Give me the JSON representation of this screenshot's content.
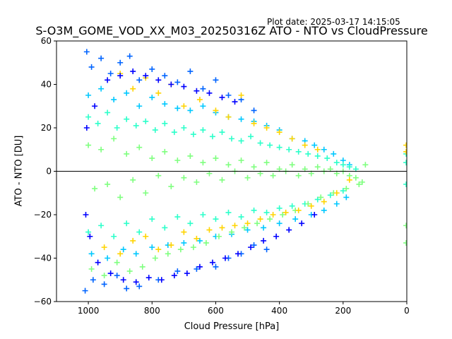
{
  "header": {
    "plot_date": "Plot date: 2025-03-17 14:15:05"
  },
  "chart_data": {
    "type": "scatter",
    "title": "S-O3M_GOME_VOD_XX_M03_20250316Z ATO - NTO vs CloudPressure",
    "xlabel": "Cloud Pressure [hPa]",
    "ylabel": "ATO - NTO [DU]",
    "xlim": [
      1100,
      0
    ],
    "ylim": [
      -60,
      60
    ],
    "x_inverted": true,
    "grid": false,
    "x_ticks": [
      1000,
      800,
      600,
      400,
      200,
      0
    ],
    "y_ticks": [
      -60,
      -40,
      -20,
      0,
      20,
      40,
      60
    ],
    "x_tick_labels": [
      "1000",
      "800",
      "600",
      "400",
      "200",
      "0"
    ],
    "y_tick_labels": [
      "−60",
      "−40",
      "−20",
      "0",
      "20",
      "40",
      "60"
    ],
    "reference_line": {
      "y": 0,
      "color": "#000000"
    },
    "marker": "+",
    "series_colors": [
      "#0000ff",
      "#0064ff",
      "#00c8ff",
      "#2cffca",
      "#7fff7f",
      "#ffd400"
    ],
    "series": [
      {
        "color": "#0064ff",
        "x": [
          1005,
          990,
          960,
          930,
          900,
          870,
          840,
          800,
          760,
          720,
          680,
          640,
          600,
          560,
          520,
          480,
          1010,
          985,
          950,
          910,
          880,
          840,
          780,
          720,
          660,
          600,
          560,
          520,
          480,
          440
        ],
        "y": [
          55,
          48,
          52,
          45,
          50,
          53,
          42,
          47,
          44,
          41,
          46,
          38,
          42,
          35,
          33,
          28,
          -55,
          -50,
          -52,
          -48,
          -54,
          -53,
          -50,
          -46,
          -45,
          -44,
          -40,
          -38,
          -34,
          -36
        ]
      },
      {
        "color": "#00c8ff",
        "x": [
          1000,
          960,
          920,
          880,
          840,
          800,
          760,
          720,
          680,
          640,
          600,
          560,
          520,
          480,
          440,
          400,
          360,
          320,
          290,
          260,
          230,
          200,
          180,
          990,
          940,
          890,
          850,
          800,
          750,
          700,
          650,
          600,
          550,
          500,
          450,
          400,
          350,
          300,
          260,
          220,
          190
        ],
        "y": [
          35,
          38,
          33,
          36,
          30,
          34,
          31,
          29,
          28,
          30,
          27,
          25,
          24,
          23,
          21,
          19,
          15,
          14,
          12,
          10,
          8,
          5,
          3,
          -38,
          -40,
          -36,
          -38,
          -35,
          -34,
          -33,
          -32,
          -30,
          -29,
          -27,
          -26,
          -24,
          -22,
          -20,
          -18,
          -15,
          -12
        ]
      },
      {
        "color": "#2cffca",
        "x": [
          1000,
          970,
          940,
          910,
          880,
          850,
          820,
          790,
          760,
          730,
          700,
          670,
          640,
          610,
          580,
          550,
          520,
          490,
          460,
          430,
          400,
          370,
          340,
          310,
          280,
          250,
          220,
          200,
          180,
          160,
          2,
          2,
          2,
          1000,
          960,
          920,
          880,
          840,
          800,
          760,
          720,
          680,
          640,
          600,
          560,
          520,
          480,
          440,
          400,
          360,
          320,
          280,
          240,
          200
        ],
        "y": [
          25,
          22,
          27,
          20,
          24,
          21,
          23,
          19,
          22,
          18,
          20,
          17,
          19,
          16,
          18,
          15,
          14,
          16,
          13,
          12,
          11,
          10,
          9,
          8,
          7,
          6,
          4,
          3,
          2,
          1,
          8,
          4,
          -6,
          -28,
          -25,
          -30,
          -24,
          -28,
          -22,
          -26,
          -21,
          -24,
          -20,
          -22,
          -19,
          -21,
          -18,
          -19,
          -17,
          -16,
          -15,
          -13,
          -11,
          -9
        ]
      },
      {
        "color": "#7fff7f",
        "x": [
          1000,
          980,
          960,
          940,
          920,
          900,
          880,
          860,
          840,
          820,
          800,
          780,
          760,
          740,
          720,
          700,
          680,
          660,
          640,
          620,
          600,
          580,
          560,
          540,
          520,
          500,
          480,
          460,
          440,
          420,
          400,
          380,
          360,
          340,
          320,
          300,
          280,
          260,
          240,
          220,
          200,
          180,
          160,
          140,
          130,
          990,
          950,
          910,
          870,
          830,
          790,
          750,
          710,
          670,
          630,
          590,
          550,
          510,
          470,
          430,
          390,
          350,
          310,
          270,
          230,
          190,
          150,
          2,
          2
        ],
        "y": [
          12,
          -8,
          10,
          -6,
          15,
          -12,
          8,
          -4,
          11,
          -10,
          6,
          -2,
          9,
          -7,
          5,
          -3,
          7,
          -5,
          4,
          -1,
          6,
          -4,
          3,
          0,
          5,
          -3,
          2,
          -1,
          4,
          -2,
          1,
          0,
          3,
          -2,
          1,
          -1,
          2,
          0,
          1,
          -1,
          0,
          -2,
          -3,
          -5,
          3,
          -45,
          -48,
          -42,
          -46,
          -44,
          -40,
          -38,
          -36,
          -35,
          -33,
          -30,
          -28,
          -26,
          -24,
          -22,
          -20,
          -18,
          -15,
          -12,
          -10,
          -8,
          -6,
          -25,
          -33
        ]
      },
      {
        "color": "#ffd400",
        "x": [
          950,
          900,
          860,
          820,
          780,
          740,
          700,
          660,
          620,
          580,
          540,
          500,
          460,
          420,
          380,
          340,
          300,
          260,
          220,
          180,
          2,
          2,
          900,
          860,
          820,
          780,
          740,
          700,
          650,
          600,
          560,
          520,
          480,
          440,
          400,
          360,
          320,
          280
        ],
        "y": [
          -35,
          -38,
          -32,
          -30,
          -36,
          -34,
          -28,
          -31,
          -27,
          -26,
          -25,
          -24,
          -22,
          -20,
          -19,
          -18,
          -16,
          -14,
          -10,
          -4,
          12,
          9,
          45,
          38,
          43,
          36,
          40,
          30,
          33,
          28,
          25,
          35,
          22,
          20,
          18,
          15,
          12,
          10
        ]
      },
      {
        "color": "#0000ff",
        "x": [
          1008,
          995,
          970,
          930,
          890,
          850,
          810,
          770,
          730,
          690,
          650,
          610,
          570,
          530,
          490,
          450,
          410,
          370,
          330,
          290,
          1005,
          980,
          940,
          900,
          860,
          820,
          780,
          740,
          700,
          660,
          620,
          580,
          540
        ],
        "y": [
          -20,
          -30,
          -42,
          -47,
          -50,
          -51,
          -49,
          -50,
          -48,
          -47,
          -44,
          -42,
          -40,
          -38,
          -35,
          -32,
          -30,
          -27,
          -24,
          -20,
          20,
          30,
          42,
          44,
          46,
          44,
          42,
          40,
          39,
          37,
          36,
          34,
          32
        ]
      }
    ]
  }
}
